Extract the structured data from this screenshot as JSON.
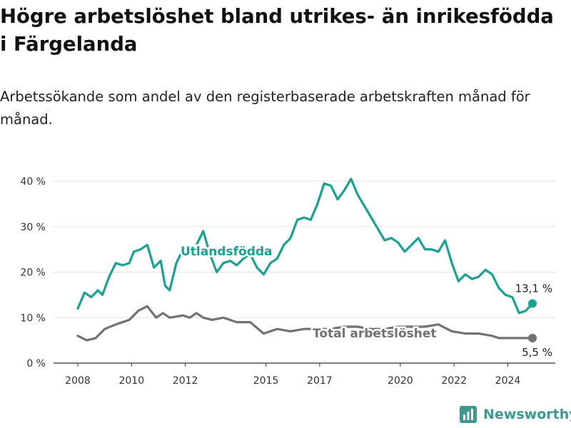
{
  "title": "Högre arbetslöshet bland utrikes- än inrikesfödda i Färgelanda",
  "subtitle": "Arbetssökande som andel av den registerbaserade arbetskraften månad för månad.",
  "brand": "Newsworthy",
  "colors": {
    "foreign": "#16a394",
    "total": "#727176",
    "grid": "#e3e3e3",
    "axis": "#333333"
  },
  "chart_data": {
    "type": "line",
    "ylim": [
      0,
      40
    ],
    "yticks": [
      "0 %",
      "10 %",
      "20 %",
      "30 %",
      "40 %"
    ],
    "xticks": [
      "2008",
      "2010",
      "2012",
      "2015",
      "2017",
      "2020",
      "2022",
      "2024"
    ],
    "grid": true,
    "series": [
      {
        "name": "Utlandsfödda",
        "end_label": "13,1 %",
        "points": [
          [
            "2008-01",
            12
          ],
          [
            "2008-04",
            15.5
          ],
          [
            "2008-07",
            14.5
          ],
          [
            "2008-10",
            16
          ],
          [
            "2008-12",
            15
          ],
          [
            "2009-03",
            19
          ],
          [
            "2009-06",
            22
          ],
          [
            "2009-09",
            21.5
          ],
          [
            "2009-12",
            22
          ],
          [
            "2010-02",
            24.5
          ],
          [
            "2010-05",
            25
          ],
          [
            "2010-08",
            26
          ],
          [
            "2010-11",
            21
          ],
          [
            "2011-02",
            22.5
          ],
          [
            "2011-04",
            17
          ],
          [
            "2011-06",
            16
          ],
          [
            "2011-09",
            22
          ],
          [
            "2011-12",
            25
          ],
          [
            "2012-03",
            24.5
          ],
          [
            "2012-06",
            26
          ],
          [
            "2012-09",
            29
          ],
          [
            "2012-12",
            24
          ],
          [
            "2013-03",
            20
          ],
          [
            "2013-06",
            22
          ],
          [
            "2013-09",
            22.5
          ],
          [
            "2013-12",
            21.5
          ],
          [
            "2014-03",
            23
          ],
          [
            "2014-06",
            24
          ],
          [
            "2014-09",
            21
          ],
          [
            "2014-12",
            19.5
          ],
          [
            "2015-03",
            22
          ],
          [
            "2015-06",
            23
          ],
          [
            "2015-09",
            26
          ],
          [
            "2015-12",
            27.5
          ],
          [
            "2016-03",
            31.5
          ],
          [
            "2016-06",
            32
          ],
          [
            "2016-09",
            31.5
          ],
          [
            "2016-12",
            35
          ],
          [
            "2017-03",
            39.5
          ],
          [
            "2017-06",
            39
          ],
          [
            "2017-09",
            36
          ],
          [
            "2017-12",
            38
          ],
          [
            "2018-03",
            40.5
          ],
          [
            "2018-06",
            37
          ],
          [
            "2018-09",
            34.5
          ],
          [
            "2018-12",
            32
          ],
          [
            "2019-03",
            29.5
          ],
          [
            "2019-06",
            27
          ],
          [
            "2019-09",
            27.5
          ],
          [
            "2019-12",
            26.5
          ],
          [
            "2020-03",
            24.5
          ],
          [
            "2020-06",
            26
          ],
          [
            "2020-09",
            27.5
          ],
          [
            "2020-12",
            25
          ],
          [
            "2021-03",
            25
          ],
          [
            "2021-06",
            24.5
          ],
          [
            "2021-09",
            27
          ],
          [
            "2021-12",
            22
          ],
          [
            "2022-03",
            18
          ],
          [
            "2022-06",
            19.5
          ],
          [
            "2022-09",
            18.5
          ],
          [
            "2022-12",
            19
          ],
          [
            "2023-03",
            20.5
          ],
          [
            "2023-06",
            19.5
          ],
          [
            "2023-09",
            16.5
          ],
          [
            "2023-12",
            15
          ],
          [
            "2024-03",
            14.5
          ],
          [
            "2024-06",
            11
          ],
          [
            "2024-09",
            11.5
          ],
          [
            "2024-12",
            13.1
          ]
        ]
      },
      {
        "name": "Total arbetslöshet",
        "end_label": "5,5 %",
        "points": [
          [
            "2008-01",
            6
          ],
          [
            "2008-05",
            5
          ],
          [
            "2008-09",
            5.5
          ],
          [
            "2009-01",
            7.5
          ],
          [
            "2009-06",
            8.5
          ],
          [
            "2009-12",
            9.5
          ],
          [
            "2010-04",
            11.5
          ],
          [
            "2010-08",
            12.5
          ],
          [
            "2010-12",
            10
          ],
          [
            "2011-03",
            11
          ],
          [
            "2011-06",
            10
          ],
          [
            "2011-12",
            10.5
          ],
          [
            "2012-03",
            10
          ],
          [
            "2012-06",
            11
          ],
          [
            "2012-09",
            10
          ],
          [
            "2013-01",
            9.5
          ],
          [
            "2013-06",
            10
          ],
          [
            "2013-12",
            9
          ],
          [
            "2014-06",
            9
          ],
          [
            "2014-12",
            6.5
          ],
          [
            "2015-06",
            7.5
          ],
          [
            "2015-12",
            7
          ],
          [
            "2016-06",
            7.5
          ],
          [
            "2016-12",
            7.5
          ],
          [
            "2017-06",
            7.5
          ],
          [
            "2017-12",
            8
          ],
          [
            "2018-06",
            8
          ],
          [
            "2018-12",
            7.5
          ],
          [
            "2019-06",
            7.5
          ],
          [
            "2019-12",
            8
          ],
          [
            "2020-06",
            8
          ],
          [
            "2020-12",
            8
          ],
          [
            "2021-06",
            8.5
          ],
          [
            "2021-12",
            7
          ],
          [
            "2022-06",
            6.5
          ],
          [
            "2022-12",
            6.5
          ],
          [
            "2023-06",
            6
          ],
          [
            "2023-09",
            5.5
          ],
          [
            "2024-01",
            5.5
          ],
          [
            "2024-06",
            5.5
          ],
          [
            "2024-12",
            5.5
          ]
        ]
      }
    ]
  }
}
